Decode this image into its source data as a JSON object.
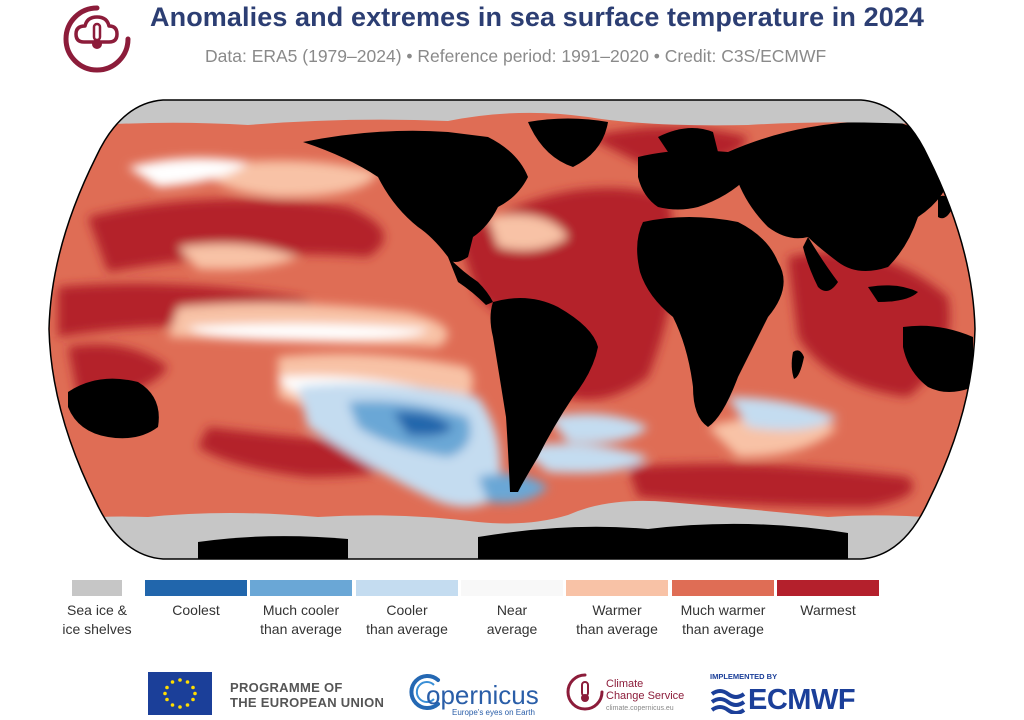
{
  "header": {
    "title": "Anomalies and extremes in sea surface temperature in 2024",
    "subtitle": "Data: ERA5 (1979–2024)  •  Reference period: 1991–2020  •  Credit: C3S/ECMWF"
  },
  "map": {
    "projection": "Robinson",
    "colors": {
      "land": "#000000",
      "sea_ice": "#c6c6c6",
      "coolest": "#2166ac",
      "much_cooler": "#6aa7d6",
      "cooler": "#c4dcf0",
      "near_average": "#ffffff",
      "warmer": "#f8c2a6",
      "much_warmer": "#df6d55",
      "warmest": "#b4202c"
    }
  },
  "legend": {
    "items": [
      {
        "line1": "Sea ice &",
        "line2": "ice shelves",
        "color": "#c6c6c6"
      },
      {
        "line1": "Coolest",
        "line2": "",
        "color": "#2166ac"
      },
      {
        "line1": "Much cooler",
        "line2": "than average",
        "color": "#6aa7d6"
      },
      {
        "line1": "Cooler",
        "line2": "than average",
        "color": "#c4dcf0"
      },
      {
        "line1": "Near",
        "line2": "average",
        "color": "#f8f8f8"
      },
      {
        "line1": "Warmer",
        "line2": "than average",
        "color": "#f8c2a6"
      },
      {
        "line1": "Much warmer",
        "line2": "than average",
        "color": "#df6d55"
      },
      {
        "line1": "Warmest",
        "line2": "",
        "color": "#b4202c"
      }
    ]
  },
  "footer": {
    "eu_line1": "PROGRAMME OF",
    "eu_line2": "THE EUROPEAN UNION",
    "copernicus_name": "opernicus",
    "copernicus_tagline": "Europe's eyes on Earth",
    "c3s_line1": "Climate",
    "c3s_line2": "Change Service",
    "c3s_url": "climate.copernicus.eu",
    "ecmwf_implemented": "IMPLEMENTED BY",
    "ecmwf_name": "ECMWF"
  }
}
